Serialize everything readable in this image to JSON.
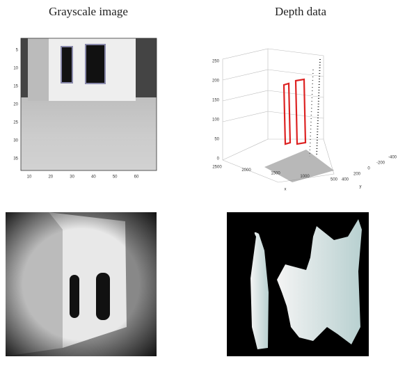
{
  "panels": {
    "grayscale": {
      "title": "Grayscale image",
      "xticks": [
        "10",
        "20",
        "30",
        "40",
        "50",
        "60"
      ],
      "yticks": [
        "5",
        "10",
        "15",
        "20",
        "25",
        "30",
        "35"
      ]
    },
    "depth": {
      "title": "Depth data",
      "zticks": [
        "0",
        "50",
        "100",
        "150",
        "200",
        "250"
      ],
      "xticks": [
        "2500",
        "2000",
        "1500",
        "1000",
        "500"
      ],
      "yticks": [
        "400",
        "200",
        "0",
        "-200",
        "-400"
      ],
      "xlabel": "x",
      "ylabel": "y"
    }
  }
}
